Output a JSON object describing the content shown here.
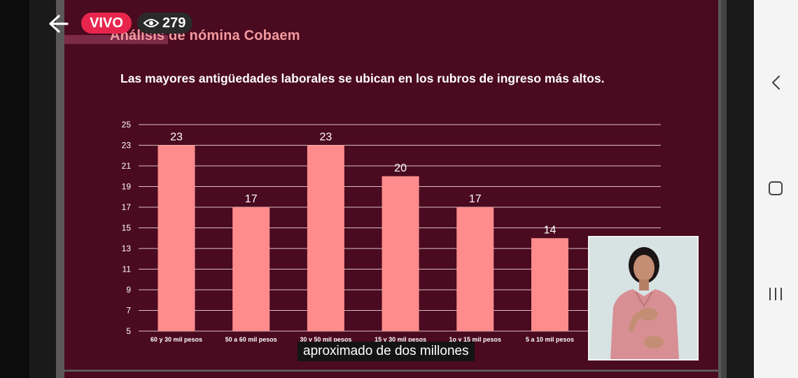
{
  "live": {
    "badge": "VIVO",
    "viewer_count": "279"
  },
  "slide": {
    "heading": "Análisis de nómina Cobaem",
    "subtitle": "Las mayores antigüedades laborales se ubican en los rubros de ingreso más altos."
  },
  "caption": "aproximado de dos millones",
  "colors": {
    "slide_background": "#4a0a1f",
    "bar": "#ff8c8c",
    "heading": "#f39aa0",
    "live_badge": "#e8264d"
  },
  "icons": [
    "back-arrow-icon",
    "eye-icon",
    "chevron-left-icon",
    "square-icon",
    "recent-apps-icon"
  ],
  "chart_data": {
    "type": "bar",
    "categories": [
      "60 y 30 mil pesos",
      "50 a 60 mil pesos",
      "30 y 50 mil pesos",
      "15 y 30 mil pesos",
      "1o y 15 mil pesos",
      "5 a 10 mil pesos"
    ],
    "values": [
      23,
      17,
      23,
      20,
      17,
      14
    ],
    "ylim": [
      5,
      25
    ],
    "yticks": [
      5,
      7,
      9,
      11,
      13,
      15,
      17,
      19,
      21,
      23,
      25
    ],
    "grid": true,
    "legend": "none"
  }
}
